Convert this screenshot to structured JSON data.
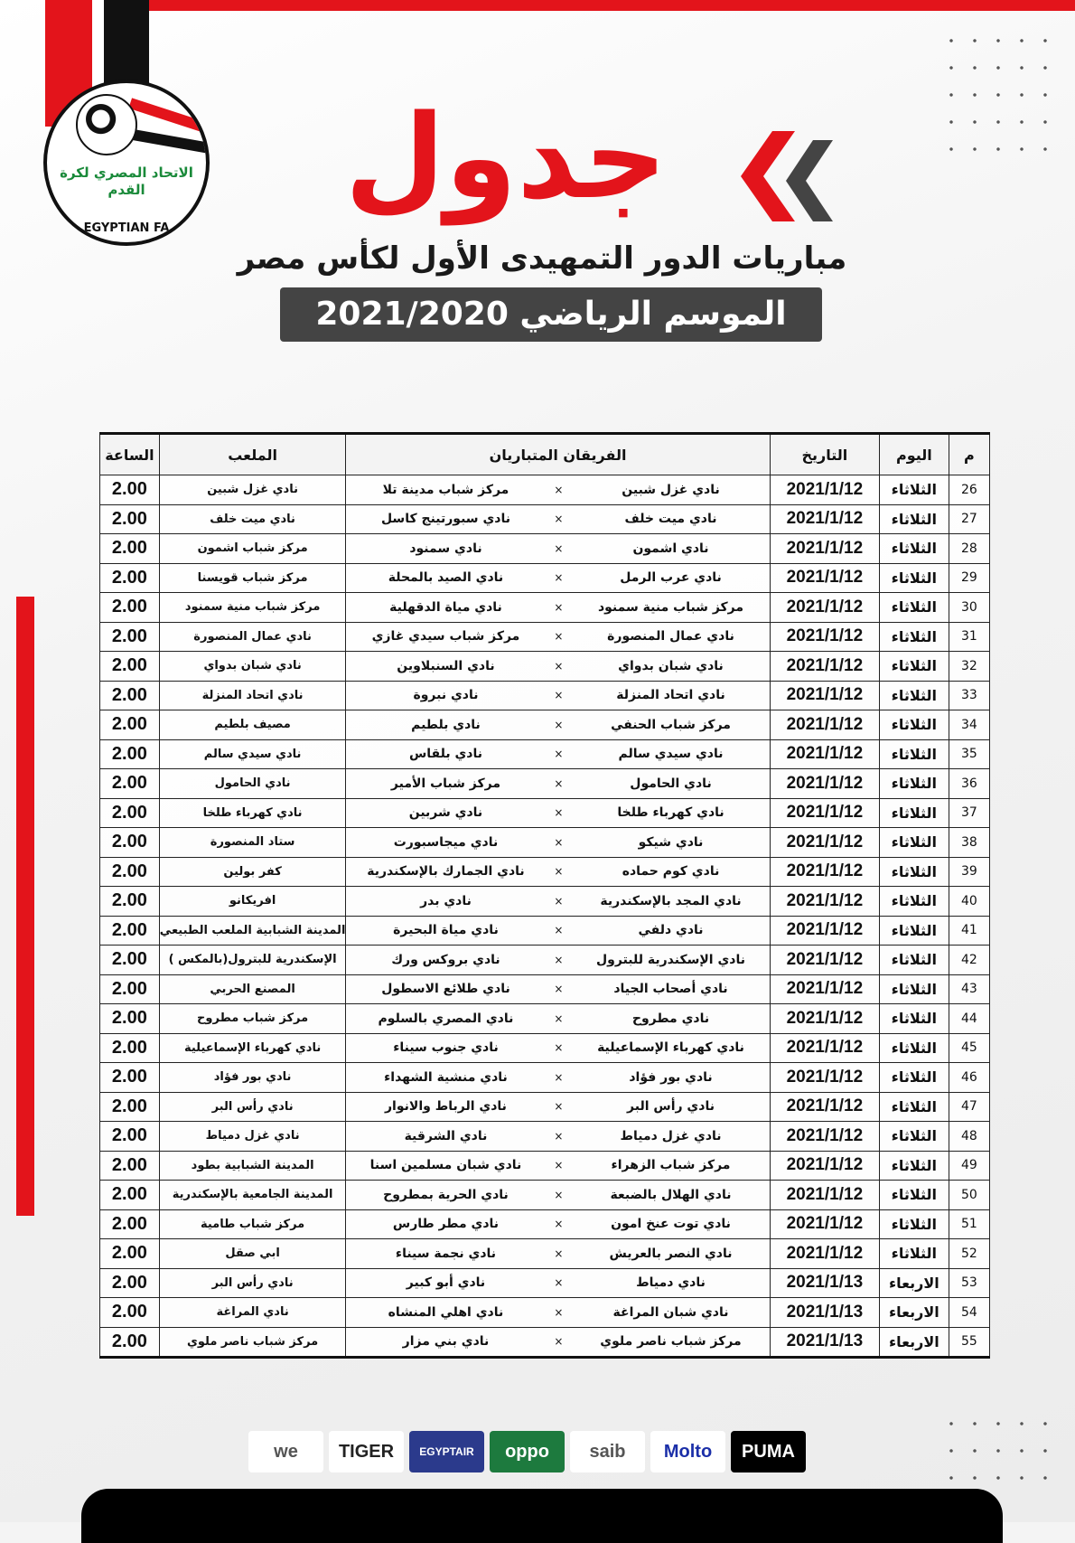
{
  "header": {
    "title": "جدول",
    "subtitle": "مباريات الدور التمهيدى الأول لكأس مصر",
    "season": "الموسم الرياضي 2021/2020",
    "logo_text_ar": "الاتحاد المصري لكرة القدم",
    "logo_text_en": "EGYPTIAN FA"
  },
  "colors": {
    "accent": "#e3141b",
    "dark": "#444444"
  },
  "table": {
    "headers": {
      "num": "م",
      "day": "اليوم",
      "date": "التاريخ",
      "teams": "الفريقان المتباريان",
      "venue": "الملعب",
      "time": "الساعة"
    },
    "vs": "×",
    "rows": [
      {
        "num": "26",
        "day": "الثلاثاء",
        "date": "2021/1/12",
        "home": "نادي غزل شبين",
        "away": "مركز شباب مدينة تلا",
        "venue": "نادي غزل شبين",
        "time": "2.00"
      },
      {
        "num": "27",
        "day": "الثلاثاء",
        "date": "2021/1/12",
        "home": "نادي ميت خلف",
        "away": "نادي سبورتينج كاسل",
        "venue": "نادي ميت خلف",
        "time": "2.00"
      },
      {
        "num": "28",
        "day": "الثلاثاء",
        "date": "2021/1/12",
        "home": "نادي اشمون",
        "away": "نادي سمنود",
        "venue": "مركز شباب اشمون",
        "time": "2.00"
      },
      {
        "num": "29",
        "day": "الثلاثاء",
        "date": "2021/1/12",
        "home": "نادي عرب الرمل",
        "away": "نادي الصيد بالمحلة",
        "venue": "مركز شباب قويسنا",
        "time": "2.00"
      },
      {
        "num": "30",
        "day": "الثلاثاء",
        "date": "2021/1/12",
        "home": "مركز شباب منية سمنود",
        "away": "نادي مياة الدقهلية",
        "venue": "مركز شباب منية سمنود",
        "time": "2.00"
      },
      {
        "num": "31",
        "day": "الثلاثاء",
        "date": "2021/1/12",
        "home": "نادي عمال المنصورة",
        "away": "مركز شباب سيدي غازي",
        "venue": "نادي عمال المنصورة",
        "time": "2.00"
      },
      {
        "num": "32",
        "day": "الثلاثاء",
        "date": "2021/1/12",
        "home": "نادي شبان بدواي",
        "away": "نادي السنبلاوين",
        "venue": "نادي شبان بدواي",
        "time": "2.00"
      },
      {
        "num": "33",
        "day": "الثلاثاء",
        "date": "2021/1/12",
        "home": "نادي اتحاد المنزلة",
        "away": "نادي نبروة",
        "venue": "نادي اتحاد المنزلة",
        "time": "2.00"
      },
      {
        "num": "34",
        "day": "الثلاثاء",
        "date": "2021/1/12",
        "home": "مركز شباب الحنفي",
        "away": "نادي بلطيم",
        "venue": "مصيف بلطيم",
        "time": "2.00"
      },
      {
        "num": "35",
        "day": "الثلاثاء",
        "date": "2021/1/12",
        "home": "نادي سيدي سالم",
        "away": "نادي بلقاس",
        "venue": "نادي سيدي سالم",
        "time": "2.00"
      },
      {
        "num": "36",
        "day": "الثلاثاء",
        "date": "2021/1/12",
        "home": "نادي الحامول",
        "away": "مركز شباب الأمير",
        "venue": "نادي الحامول",
        "time": "2.00"
      },
      {
        "num": "37",
        "day": "الثلاثاء",
        "date": "2021/1/12",
        "home": "نادي كهرباء طلخا",
        "away": "نادي شربين",
        "venue": "نادي كهرباء طلخا",
        "time": "2.00"
      },
      {
        "num": "38",
        "day": "الثلاثاء",
        "date": "2021/1/12",
        "home": "نادي شيكو",
        "away": "نادي ميجاسبورت",
        "venue": "ستاد المنصورة",
        "time": "2.00"
      },
      {
        "num": "39",
        "day": "الثلاثاء",
        "date": "2021/1/12",
        "home": "نادي كوم حماده",
        "away": "نادي الجمارك بالإسكندرية",
        "venue": "كفر بولين",
        "time": "2.00"
      },
      {
        "num": "40",
        "day": "الثلاثاء",
        "date": "2021/1/12",
        "home": "نادي المجد بالإسكندرية",
        "away": "نادي بدر",
        "venue": "افريكانو",
        "time": "2.00"
      },
      {
        "num": "41",
        "day": "الثلاثاء",
        "date": "2021/1/12",
        "home": "نادي دلفي",
        "away": "نادي مياة البحيرة",
        "venue": "المدينة الشبابية الملعب الطبيعي",
        "time": "2.00"
      },
      {
        "num": "42",
        "day": "الثلاثاء",
        "date": "2021/1/12",
        "home": "نادي الإسكندرية للبترول",
        "away": "نادي بروكس ورك",
        "venue": "الإسكندرية للبترول(بالمكس )",
        "time": "2.00"
      },
      {
        "num": "43",
        "day": "الثلاثاء",
        "date": "2021/1/12",
        "home": "نادي أصحاب الجياد",
        "away": "نادي طلائع الاسطول",
        "venue": "المصنع الحربي",
        "time": "2.00"
      },
      {
        "num": "44",
        "day": "الثلاثاء",
        "date": "2021/1/12",
        "home": "نادي مطروح",
        "away": "نادي المصري بالسلوم",
        "venue": "مركز شباب مطروح",
        "time": "2.00"
      },
      {
        "num": "45",
        "day": "الثلاثاء",
        "date": "2021/1/12",
        "home": "نادي كهرباء الإسماعيلية",
        "away": "نادي جنوب سيناء",
        "venue": "نادي كهرباء الإسماعيلية",
        "time": "2.00"
      },
      {
        "num": "46",
        "day": "الثلاثاء",
        "date": "2021/1/12",
        "home": "نادي بور فؤاد",
        "away": "نادي منشية الشهداء",
        "venue": "نادي بور فؤاد",
        "time": "2.00"
      },
      {
        "num": "47",
        "day": "الثلاثاء",
        "date": "2021/1/12",
        "home": "نادي رأس البر",
        "away": "نادي الرباط والانوار",
        "venue": "نادي رأس البر",
        "time": "2.00"
      },
      {
        "num": "48",
        "day": "الثلاثاء",
        "date": "2021/1/12",
        "home": "نادي غزل دمياط",
        "away": "نادي الشرقية",
        "venue": "نادي غزل دمياط",
        "time": "2.00"
      },
      {
        "num": "49",
        "day": "الثلاثاء",
        "date": "2021/1/12",
        "home": "مركز شباب الزهراء",
        "away": "نادي شبان مسلمين اسنا",
        "venue": "المدينة الشبابية بطود",
        "time": "2.00"
      },
      {
        "num": "50",
        "day": "الثلاثاء",
        "date": "2021/1/12",
        "home": "نادي الهلال بالضبعة",
        "away": "نادي الحرية بمطروح",
        "venue": "المدينة الجامعية بالإسكندرية",
        "time": "2.00"
      },
      {
        "num": "51",
        "day": "الثلاثاء",
        "date": "2021/1/12",
        "home": "نادي توت عنخ امون",
        "away": "نادي مطر طارس",
        "venue": "مركز شباب طامية",
        "time": "2.00"
      },
      {
        "num": "52",
        "day": "الثلاثاء",
        "date": "2021/1/12",
        "home": "نادي النصر بالعريش",
        "away": "نادي نجمة سيناء",
        "venue": "ابي صقل",
        "time": "2.00"
      },
      {
        "num": "53",
        "day": "الاربعاء",
        "date": "2021/1/13",
        "home": "نادي دمياط",
        "away": "نادي أبو كبير",
        "venue": "نادي رأس البر",
        "time": "2.00"
      },
      {
        "num": "54",
        "day": "الاربعاء",
        "date": "2021/1/13",
        "home": "نادي شبان المراغة",
        "away": "نادي اهلي المنشاه",
        "venue": "نادي المراغة",
        "time": "2.00"
      },
      {
        "num": "55",
        "day": "الاربعاء",
        "date": "2021/1/13",
        "home": "مركز شباب ناصر ملوي",
        "away": "نادي بني مزار",
        "venue": "مركز شباب ناصر ملوي",
        "time": "2.00"
      }
    ]
  },
  "sponsors": [
    {
      "name": "we",
      "bg": "#ffffff",
      "fg": "#555555"
    },
    {
      "name": "TIGER",
      "bg": "#ffffff",
      "fg": "#222222"
    },
    {
      "name": "EGYPTAIR",
      "bg": "#2b3a8c",
      "fg": "#ffffff"
    },
    {
      "name": "oppo",
      "bg": "#1d7a3e",
      "fg": "#ffffff"
    },
    {
      "name": "saib",
      "bg": "#ffffff",
      "fg": "#555555"
    },
    {
      "name": "Molto",
      "bg": "#ffffff",
      "fg": "#1b2fa8"
    },
    {
      "name": "PUMA",
      "bg": "#000000",
      "fg": "#ffffff"
    }
  ]
}
